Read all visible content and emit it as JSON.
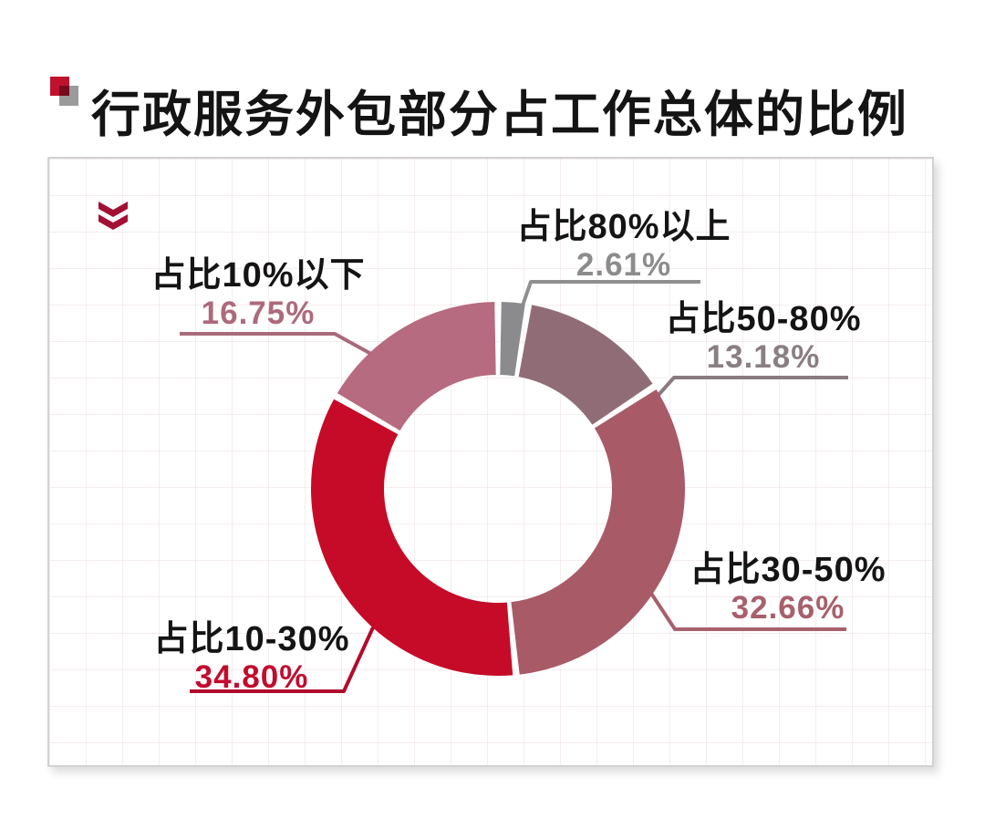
{
  "title": {
    "text": "行政服务外包部分占工作总体的比例"
  },
  "icons": {
    "title_bullet": "red-gray-overlapping-squares",
    "corner_icon": "double-chevron-down"
  },
  "colors": {
    "title_text": "#141414",
    "bullet_red": "#c0122f",
    "bullet_gray": "#9b9b9b",
    "chevron_red": "#a21134",
    "card_border": "#d2d2d2",
    "card_background": "#ffffff"
  },
  "chart_data": {
    "type": "pie",
    "subtype": "donut",
    "title": "行政服务外包部分占工作总体的比例",
    "unit": "%",
    "total": 100,
    "start_angle_deg": 0,
    "clockwise": true,
    "inner_radius_ratio": 0.61,
    "legend_position": "none",
    "grid": "faint-square-grid-background",
    "slices": [
      {
        "label": "占比80%以上",
        "value": 2.61,
        "value_text": "2.61%",
        "color": "#8b8b8d",
        "leader_color": "#8f8f8f",
        "value_color": "#8c8c8c"
      },
      {
        "label": "占比50-80%",
        "value": 13.18,
        "value_text": "13.18%",
        "color": "#906d76",
        "leader_color": "#8a7b80",
        "value_color": "#8a7e83"
      },
      {
        "label": "占比30-50%",
        "value": 32.66,
        "value_text": "32.66%",
        "color": "#a95a67",
        "leader_color": "#a8606d",
        "value_color": "#a8606d"
      },
      {
        "label": "占比10-30%",
        "value": 34.8,
        "value_text": "34.80%",
        "color": "#c50b28",
        "leader_color": "#b00d2c",
        "value_color": "#c20c2e"
      },
      {
        "label": "占比10%以下",
        "value": 16.75,
        "value_text": "16.75%",
        "color": "#b76b80",
        "leader_color": "#a96a7c",
        "value_color": "#ad6a7d"
      }
    ]
  }
}
